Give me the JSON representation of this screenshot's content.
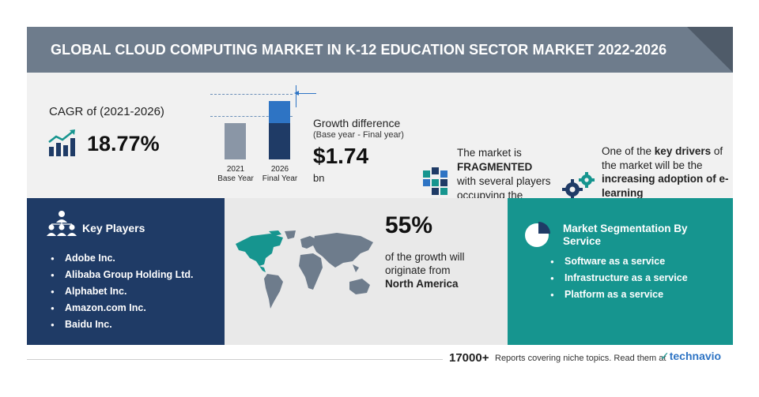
{
  "header": {
    "title": "GLOBAL CLOUD COMPUTING MARKET IN K-12 EDUCATION SECTOR MARKET 2022-2026"
  },
  "cagr": {
    "label": "CAGR of (2021-2026)",
    "value": "18.77%"
  },
  "growth_chart": {
    "base_year": "2021",
    "base_label": "Base Year",
    "final_year": "2026",
    "final_label": "Final Year"
  },
  "growth": {
    "title": "Growth difference",
    "subtitle": "(Base year - Final year)",
    "value": "$1.74",
    "unit": "bn"
  },
  "market": {
    "line1": "The market is",
    "emphasis": "FRAGMENTED",
    "line2": "with several players occupying the market share"
  },
  "drivers": {
    "pre": "One of the ",
    "key": "key drivers",
    "mid": " of the market will be the ",
    "driver": "increasing adoption of e-learning"
  },
  "key_players": {
    "title": "Key Players",
    "items": [
      "Adobe Inc.",
      "Alibaba Group Holding Ltd.",
      "Alphabet Inc.",
      "Amazon.com Inc.",
      "Baidu Inc."
    ]
  },
  "region": {
    "percent": "55%",
    "text": "of the growth will originate from",
    "name": "North America"
  },
  "segmentation": {
    "title": "Market Segmentation By Service",
    "items": [
      "Software as a service",
      "Infrastructure as a service",
      "Platform as a service"
    ]
  },
  "footer": {
    "count": "17000+",
    "text": "Reports covering niche topics. Read them at",
    "logo": "technavio"
  },
  "colors": {
    "header": "#6e7c8c",
    "navy": "#1f3b66",
    "teal": "#16958f",
    "blue": "#2e74c4"
  }
}
